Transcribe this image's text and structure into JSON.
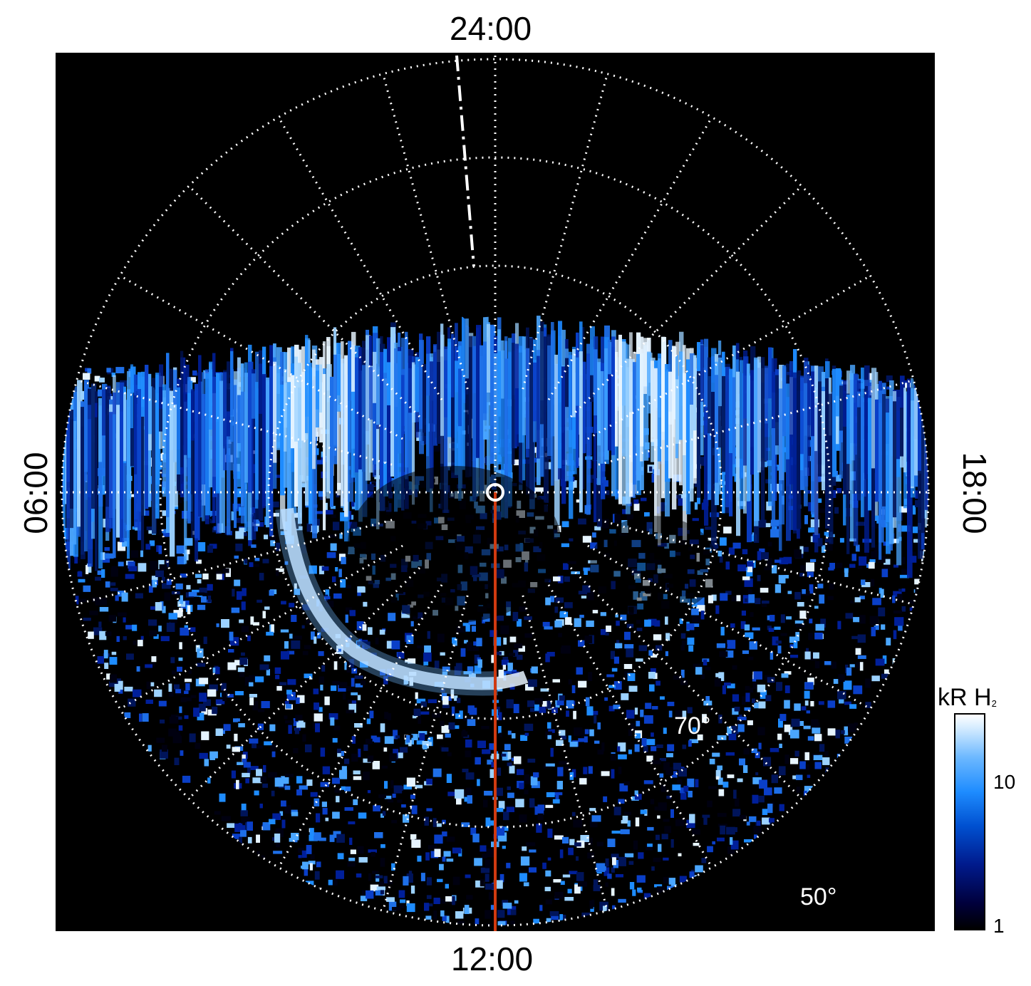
{
  "labels": {
    "top": "24:00",
    "bottom": "12:00",
    "left": "06:00",
    "right": "18:00"
  },
  "latitudes": {
    "lat70": "70°",
    "lat50": "50°"
  },
  "colorbar": {
    "title": "kR H",
    "title_sub": "2",
    "tick_high": "10",
    "tick_low": "1",
    "scale": "log"
  },
  "colors": {
    "background": "#000000",
    "grid": "#ffffff",
    "meridian_line": "#d03a10",
    "aurora_low": "#001a8c",
    "aurora_mid": "#1e8cff",
    "aurora_high": "#ffffff"
  }
}
